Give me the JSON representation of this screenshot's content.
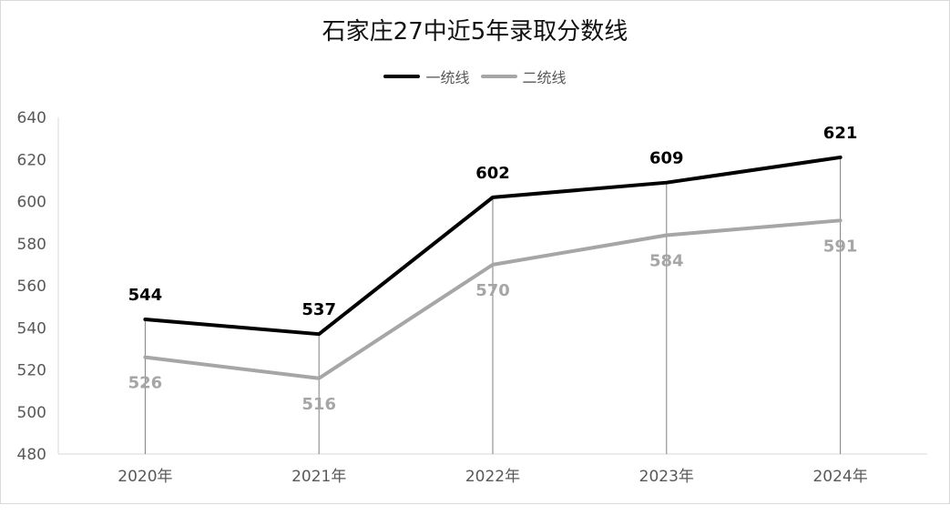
{
  "colors": {
    "series1": "#000000",
    "series2": "#a6a6a6",
    "axis": "#d9d9d9",
    "droplines": "#7f7f7f",
    "tick_text": "#595959"
  },
  "chart_data": {
    "type": "line",
    "title": "石家庄27中近5年录取分数线",
    "xlabel": "",
    "ylabel": "",
    "categories": [
      "2020年",
      "2021年",
      "2022年",
      "2023年",
      "2024年"
    ],
    "ylim": [
      480,
      640
    ],
    "yticks": [
      480,
      500,
      520,
      540,
      560,
      580,
      600,
      620,
      640
    ],
    "grid": false,
    "drop_lines": true,
    "legend_position": "top",
    "series": [
      {
        "name": "一统线",
        "color": "#000000",
        "values": [
          544,
          537,
          602,
          609,
          621
        ],
        "label_position": "above"
      },
      {
        "name": "二统线",
        "color": "#a6a6a6",
        "values": [
          526,
          516,
          570,
          584,
          591
        ],
        "label_position": "below"
      }
    ]
  }
}
